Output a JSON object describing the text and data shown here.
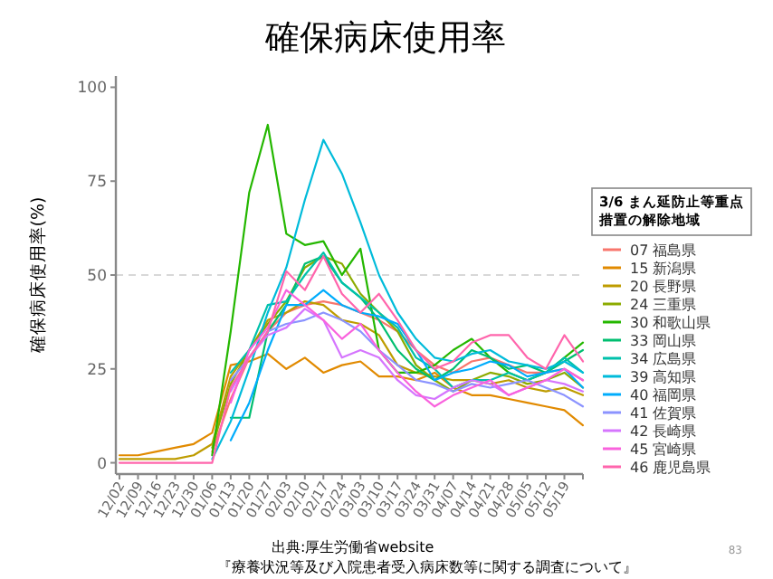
{
  "chart_data": {
    "type": "line",
    "title": "確保病床使用率",
    "ylabel": "確保病床使用率(%)",
    "legend_title": "3/6 まん延防止等重点措置の解除地域",
    "categories": [
      "12/02",
      "12/09",
      "12/16",
      "12/23",
      "12/30",
      "01/06",
      "01/13",
      "01/20",
      "01/27",
      "02/03",
      "02/10",
      "02/17",
      "02/24",
      "03/03",
      "03/10",
      "03/17",
      "03/24",
      "03/31",
      "04/07",
      "04/14",
      "04/21",
      "04/28",
      "05/05",
      "05/12",
      "05/19",
      null
    ],
    "ylim": [
      -3,
      103
    ],
    "yticks": [
      0,
      25,
      50,
      75,
      100
    ],
    "grid": false,
    "legend": "right",
    "line_style": "solid",
    "marker": "none",
    "ref_lines": [
      {
        "axis": "y",
        "value": 50,
        "color": "#cccccc",
        "line_style": "dashed"
      }
    ],
    "series": [
      {
        "name": "07 福島県",
        "color": "#f8766d",
        "values": [
          null,
          null,
          null,
          null,
          null,
          3,
          17,
          28,
          35,
          40,
          42,
          43,
          42,
          40,
          38,
          35,
          30,
          26,
          24,
          27,
          28,
          26,
          24,
          24,
          25,
          22
        ]
      },
      {
        "name": "15 新潟県",
        "color": "#e18a00",
        "values": [
          2,
          2,
          3,
          4,
          5,
          8,
          26,
          27,
          29,
          25,
          28,
          24,
          26,
          27,
          23,
          23,
          22,
          24,
          20,
          18,
          18,
          17,
          16,
          15,
          14,
          10
        ]
      },
      {
        "name": "20 長野県",
        "color": "#be9c00",
        "values": [
          1,
          1,
          1,
          1,
          2,
          5,
          23,
          30,
          38,
          40,
          43,
          42,
          38,
          37,
          34,
          26,
          24,
          23,
          22,
          22,
          21,
          22,
          20,
          19,
          20,
          18
        ]
      },
      {
        "name": "24 三重県",
        "color": "#8cab00",
        "values": [
          null,
          null,
          null,
          null,
          null,
          4,
          21,
          30,
          37,
          43,
          52,
          55,
          53,
          45,
          40,
          35,
          26,
          22,
          19,
          22,
          24,
          23,
          21,
          22,
          24,
          20
        ]
      },
      {
        "name": "30 和歌山県",
        "color": "#24b700",
        "values": [
          null,
          null,
          null,
          null,
          null,
          2,
          35,
          72,
          90,
          61,
          58,
          59,
          50,
          57,
          30,
          24,
          24,
          26,
          30,
          33,
          28,
          24,
          22,
          24,
          28,
          32
        ]
      },
      {
        "name": "33 岡山県",
        "color": "#00be70",
        "values": [
          null,
          null,
          null,
          null,
          null,
          null,
          12,
          12,
          35,
          42,
          53,
          55,
          48,
          44,
          38,
          30,
          25,
          22,
          25,
          30,
          28,
          25,
          26,
          24,
          27,
          30
        ]
      },
      {
        "name": "34 広島県",
        "color": "#00c1ab",
        "values": [
          null,
          null,
          null,
          null,
          null,
          null,
          24,
          30,
          42,
          43,
          50,
          56,
          48,
          44,
          40,
          36,
          28,
          25,
          20,
          22,
          22,
          24,
          22,
          24,
          28,
          24
        ]
      },
      {
        "name": "39 高知県",
        "color": "#00bbda",
        "values": [
          null,
          null,
          null,
          null,
          null,
          1,
          11,
          25,
          40,
          52,
          70,
          86,
          77,
          64,
          50,
          40,
          33,
          28,
          27,
          29,
          30,
          27,
          26,
          25,
          27,
          24
        ]
      },
      {
        "name": "40 福岡県",
        "color": "#00acfc",
        "values": [
          null,
          null,
          null,
          null,
          null,
          null,
          6,
          16,
          30,
          42,
          42,
          46,
          42,
          40,
          39,
          37,
          30,
          22,
          24,
          25,
          27,
          26,
          23,
          24,
          25,
          20
        ]
      },
      {
        "name": "41 佐賀県",
        "color": "#8b93ff",
        "values": [
          null,
          null,
          null,
          null,
          null,
          null,
          22,
          28,
          35,
          37,
          38,
          40,
          38,
          35,
          30,
          26,
          22,
          21,
          19,
          21,
          20,
          21,
          22,
          20,
          18,
          15
        ]
      },
      {
        "name": "42 長崎県",
        "color": "#d575fe",
        "values": [
          null,
          null,
          null,
          null,
          null,
          null,
          19,
          28,
          34,
          36,
          41,
          38,
          28,
          30,
          28,
          22,
          18,
          17,
          20,
          22,
          21,
          18,
          20,
          22,
          21,
          19
        ]
      },
      {
        "name": "45 宮崎県",
        "color": "#f962dd",
        "values": [
          null,
          null,
          null,
          null,
          null,
          null,
          16,
          30,
          36,
          46,
          42,
          38,
          33,
          37,
          30,
          24,
          19,
          15,
          18,
          20,
          22,
          18,
          20,
          22,
          25,
          22
        ]
      },
      {
        "name": "46 鹿児島県",
        "color": "#ff65ac",
        "values": [
          0,
          0,
          0,
          0,
          0,
          0,
          20,
          28,
          35,
          51,
          46,
          55,
          45,
          40,
          45,
          38,
          30,
          25,
          27,
          32,
          34,
          34,
          28,
          25,
          34,
          27
        ]
      }
    ],
    "annotations": [
      "出典:厚生労働省website",
      "『療養状況等及び入院患者受入病床数等に関する調査について』",
      "83"
    ]
  }
}
